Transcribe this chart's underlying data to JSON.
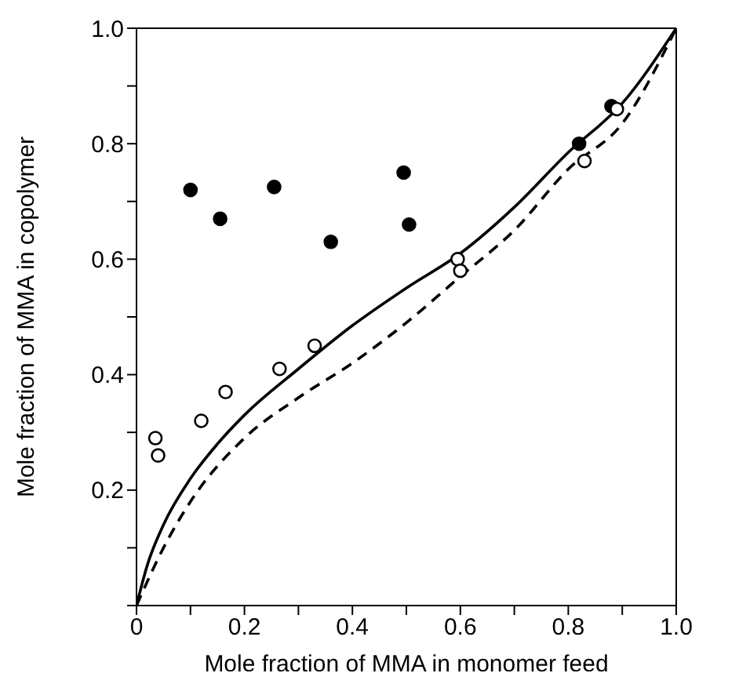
{
  "chart_data": {
    "type": "scatter",
    "xlabel": "Mole fraction of MMA in monomer feed",
    "ylabel": "Mole fraction of MMA in copolymer",
    "xlim": [
      0,
      1
    ],
    "ylim": [
      0,
      1
    ],
    "xticks": [
      0,
      {
        "value": 0.1,
        "label": null
      },
      0.2,
      {
        "value": 0.3,
        "label": null
      },
      0.4,
      {
        "value": 0.5,
        "label": null
      },
      0.6,
      {
        "value": 0.7,
        "label": null
      },
      0.8,
      {
        "value": 0.9,
        "label": null
      },
      {
        "value": 1,
        "label": "1.0"
      }
    ],
    "yticks": [
      {
        "value": 0,
        "label": null
      },
      {
        "value": 0.1,
        "label": null
      },
      0.2,
      {
        "value": 0.3,
        "label": null
      },
      0.4,
      {
        "value": 0.5,
        "label": null
      },
      0.6,
      {
        "value": 0.7,
        "label": null
      },
      0.8,
      {
        "value": 0.9,
        "label": null
      },
      {
        "value": 1,
        "label": "1.0"
      }
    ],
    "series": [
      {
        "type": "line",
        "color": "#000000",
        "line_style": "solid",
        "marker": "none",
        "x": [
          0,
          0.02,
          0.05,
          0.1,
          0.15,
          0.2,
          0.3,
          0.4,
          0.5,
          0.6,
          0.7,
          0.8,
          0.9,
          1
        ],
        "values": [
          0,
          0.07,
          0.14,
          0.22,
          0.28,
          0.33,
          0.41,
          0.485,
          0.55,
          0.61,
          0.69,
          0.785,
          0.87,
          1
        ]
      },
      {
        "type": "line",
        "color": "#000000",
        "line_style": "dashed",
        "marker": "none",
        "x": [
          0,
          0.05,
          0.1,
          0.2,
          0.3,
          0.4,
          0.5,
          0.6,
          0.7,
          0.8,
          0.9,
          1
        ],
        "values": [
          0,
          0.1,
          0.18,
          0.29,
          0.36,
          0.42,
          0.49,
          0.57,
          0.65,
          0.756,
          0.835,
          1
        ]
      },
      {
        "color": "#000000",
        "marker": "circle",
        "x": [
          0.1,
          0.155,
          0.255,
          0.36,
          0.495,
          0.505,
          0.82,
          0.88
        ],
        "values": [
          0.72,
          0.67,
          0.725,
          0.63,
          0.75,
          0.66,
          0.8,
          0.865
        ]
      },
      {
        "color": "#ffffff",
        "marker": "circle",
        "x": [
          0.035,
          0.04,
          0.12,
          0.165,
          0.265,
          0.33,
          0.595,
          0.6,
          0.83,
          0.89
        ],
        "values": [
          0.29,
          0.26,
          0.32,
          0.37,
          0.41,
          0.45,
          0.6,
          0.58,
          0.77,
          0.86
        ]
      }
    ]
  }
}
